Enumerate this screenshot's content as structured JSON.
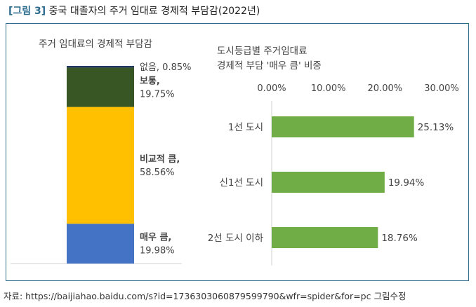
{
  "figure": {
    "tag": "[그림 3]",
    "title": "중국 대졸자의 주거 임대료 경제적 부담감(2022년)",
    "source": "자료:  https://baijiahao.baidu.com/s?id=1736303060879599790&wfr=spider&for=pc  그림수정"
  },
  "chart_data": [
    {
      "type": "bar",
      "stacked": true,
      "title": "주거 임대료의 경제적 부담감",
      "unit": "%",
      "series": [
        {
          "name": "매우 큼",
          "label": "매우 큼,",
          "value": 19.98,
          "display": "19.98%",
          "color": "#4472c4"
        },
        {
          "name": "비교적 큼",
          "label": "비교적 큼,",
          "value": 58.56,
          "display": "58.56%",
          "color": "#ffc000"
        },
        {
          "name": "보통",
          "label": "보통,",
          "value": 19.75,
          "display": "19.75%",
          "color": "#375623"
        },
        {
          "name": "없음",
          "label": "없음, 0.85%",
          "value": 0.85,
          "display": "",
          "color": "#1f3864"
        }
      ]
    },
    {
      "type": "bar",
      "orientation": "horizontal",
      "title_lines": [
        "도시등급별 주거임대료",
        "경제적 부담 '매우 큼' 비중"
      ],
      "categories": [
        "1선 도시",
        "신1선 도시",
        "2선 도시 이하"
      ],
      "values": [
        25.13,
        19.94,
        18.76
      ],
      "value_labels": [
        "25.13%",
        "19.94%",
        "18.76%"
      ],
      "xlim": [
        0,
        30
      ],
      "xticks": [
        "0.00%",
        "10.00%",
        "20.00%",
        "30.00%"
      ],
      "bar_color": "#70ad47"
    }
  ]
}
